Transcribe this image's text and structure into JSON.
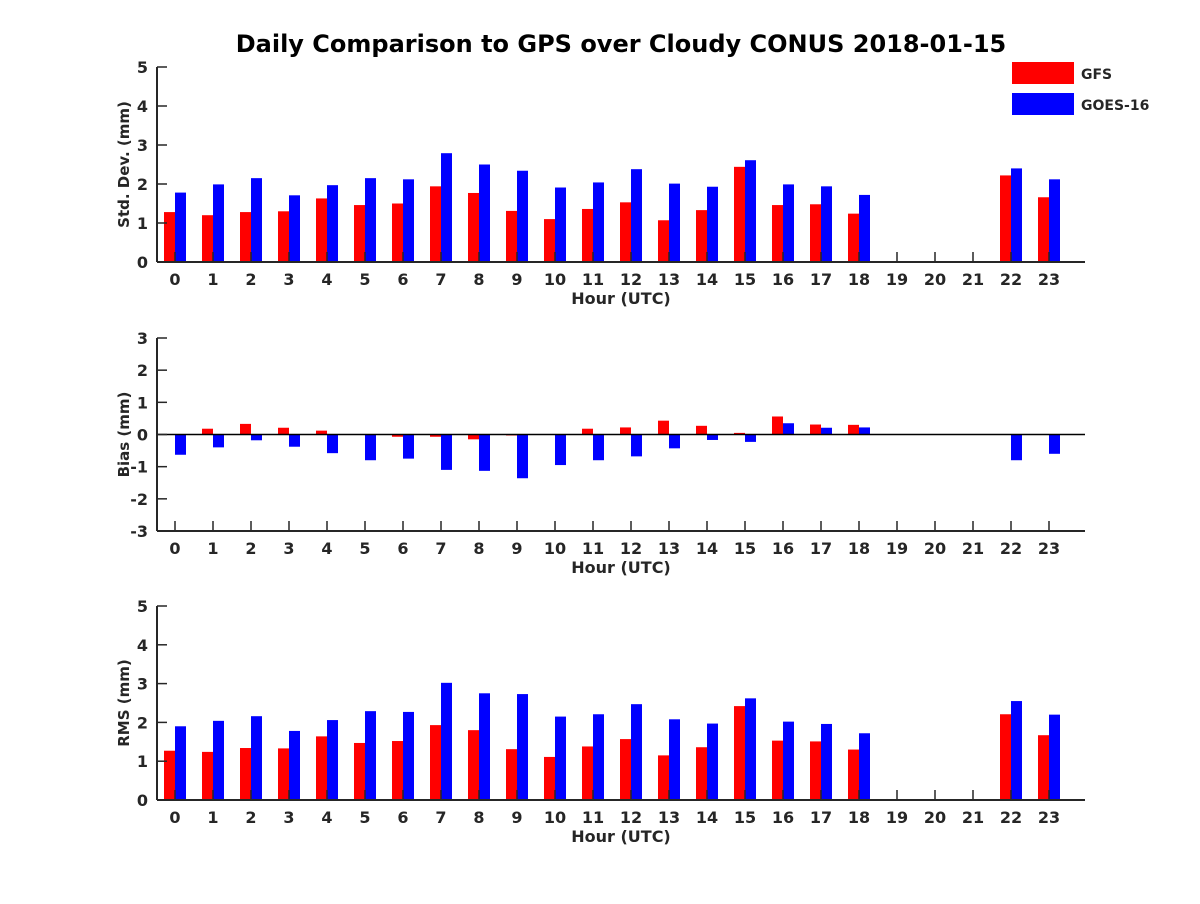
{
  "title": "Daily Comparison to GPS over Cloudy CONUS 2018-01-15",
  "legend": {
    "placement": "top-right",
    "items": [
      {
        "label": "GFS",
        "color": "#ff0000"
      },
      {
        "label": "GOES-16",
        "color": "#0000ff"
      }
    ]
  },
  "chart_data": [
    {
      "type": "bar",
      "xlabel": "Hour (UTC)",
      "ylabel": "Std. Dev. (mm)",
      "ylim": [
        0,
        5
      ],
      "yticks": [
        "0",
        "1",
        "2",
        "3",
        "4",
        "5"
      ],
      "categories": [
        "0",
        "1",
        "2",
        "3",
        "4",
        "5",
        "6",
        "7",
        "8",
        "9",
        "10",
        "11",
        "12",
        "13",
        "14",
        "15",
        "16",
        "17",
        "18",
        "19",
        "20",
        "21",
        "22",
        "23"
      ],
      "series": [
        {
          "name": "GFS",
          "color": "#ff0000",
          "values": [
            1.28,
            1.2,
            1.28,
            1.3,
            1.63,
            1.46,
            1.5,
            1.94,
            1.77,
            1.31,
            1.1,
            1.36,
            1.53,
            1.07,
            1.33,
            2.44,
            1.46,
            1.48,
            1.24,
            null,
            null,
            null,
            2.22,
            1.66
          ]
        },
        {
          "name": "GOES-16",
          "color": "#0000ff",
          "values": [
            1.78,
            1.99,
            2.15,
            1.71,
            1.97,
            2.15,
            2.12,
            2.79,
            2.5,
            2.34,
            1.91,
            2.04,
            2.38,
            2.01,
            1.93,
            2.61,
            1.99,
            1.94,
            1.72,
            null,
            null,
            null,
            2.4,
            2.12
          ]
        }
      ]
    },
    {
      "type": "bar",
      "xlabel": "Hour (UTC)",
      "ylabel": "Bias (mm)",
      "ylim": [
        -3,
        3
      ],
      "yticks": [
        "-3",
        "-2",
        "-1",
        "0",
        "1",
        "2",
        "3"
      ],
      "categories": [
        "0",
        "1",
        "2",
        "3",
        "4",
        "5",
        "6",
        "7",
        "8",
        "9",
        "10",
        "11",
        "12",
        "13",
        "14",
        "15",
        "16",
        "17",
        "18",
        "19",
        "20",
        "21",
        "22",
        "23"
      ],
      "series": [
        {
          "name": "GFS",
          "color": "#ff0000",
          "values": [
            0,
            0.18,
            0.33,
            0.21,
            0.12,
            0,
            -0.07,
            -0.07,
            -0.15,
            -0.03,
            0,
            0.18,
            0.22,
            0.43,
            0.27,
            0.05,
            0.56,
            0.31,
            0.3,
            null,
            null,
            null,
            0,
            0
          ]
        },
        {
          "name": "GOES-16",
          "color": "#0000ff",
          "values": [
            -0.63,
            -0.4,
            -0.18,
            -0.38,
            -0.58,
            -0.8,
            -0.75,
            -1.1,
            -1.13,
            -1.36,
            -0.95,
            -0.8,
            -0.68,
            -0.43,
            -0.17,
            -0.23,
            0.35,
            0.21,
            0.22,
            null,
            null,
            null,
            -0.8,
            -0.6
          ]
        }
      ]
    },
    {
      "type": "bar",
      "xlabel": "Hour (UTC)",
      "ylabel": "RMS (mm)",
      "ylim": [
        0,
        5
      ],
      "yticks": [
        "0",
        "1",
        "2",
        "3",
        "4",
        "5"
      ],
      "categories": [
        "0",
        "1",
        "2",
        "3",
        "4",
        "5",
        "6",
        "7",
        "8",
        "9",
        "10",
        "11",
        "12",
        "13",
        "14",
        "15",
        "16",
        "17",
        "18",
        "19",
        "20",
        "21",
        "22",
        "23"
      ],
      "series": [
        {
          "name": "GFS",
          "color": "#ff0000",
          "values": [
            1.27,
            1.24,
            1.34,
            1.33,
            1.64,
            1.47,
            1.52,
            1.93,
            1.8,
            1.31,
            1.11,
            1.38,
            1.57,
            1.15,
            1.36,
            2.42,
            1.53,
            1.51,
            1.3,
            null,
            null,
            null,
            2.21,
            1.67
          ]
        },
        {
          "name": "GOES-16",
          "color": "#0000ff",
          "values": [
            1.9,
            2.04,
            2.16,
            1.78,
            2.06,
            2.29,
            2.27,
            3.02,
            2.75,
            2.73,
            2.15,
            2.21,
            2.47,
            2.08,
            1.97,
            2.62,
            2.02,
            1.96,
            1.72,
            null,
            null,
            null,
            2.55,
            2.2
          ]
        }
      ]
    }
  ]
}
